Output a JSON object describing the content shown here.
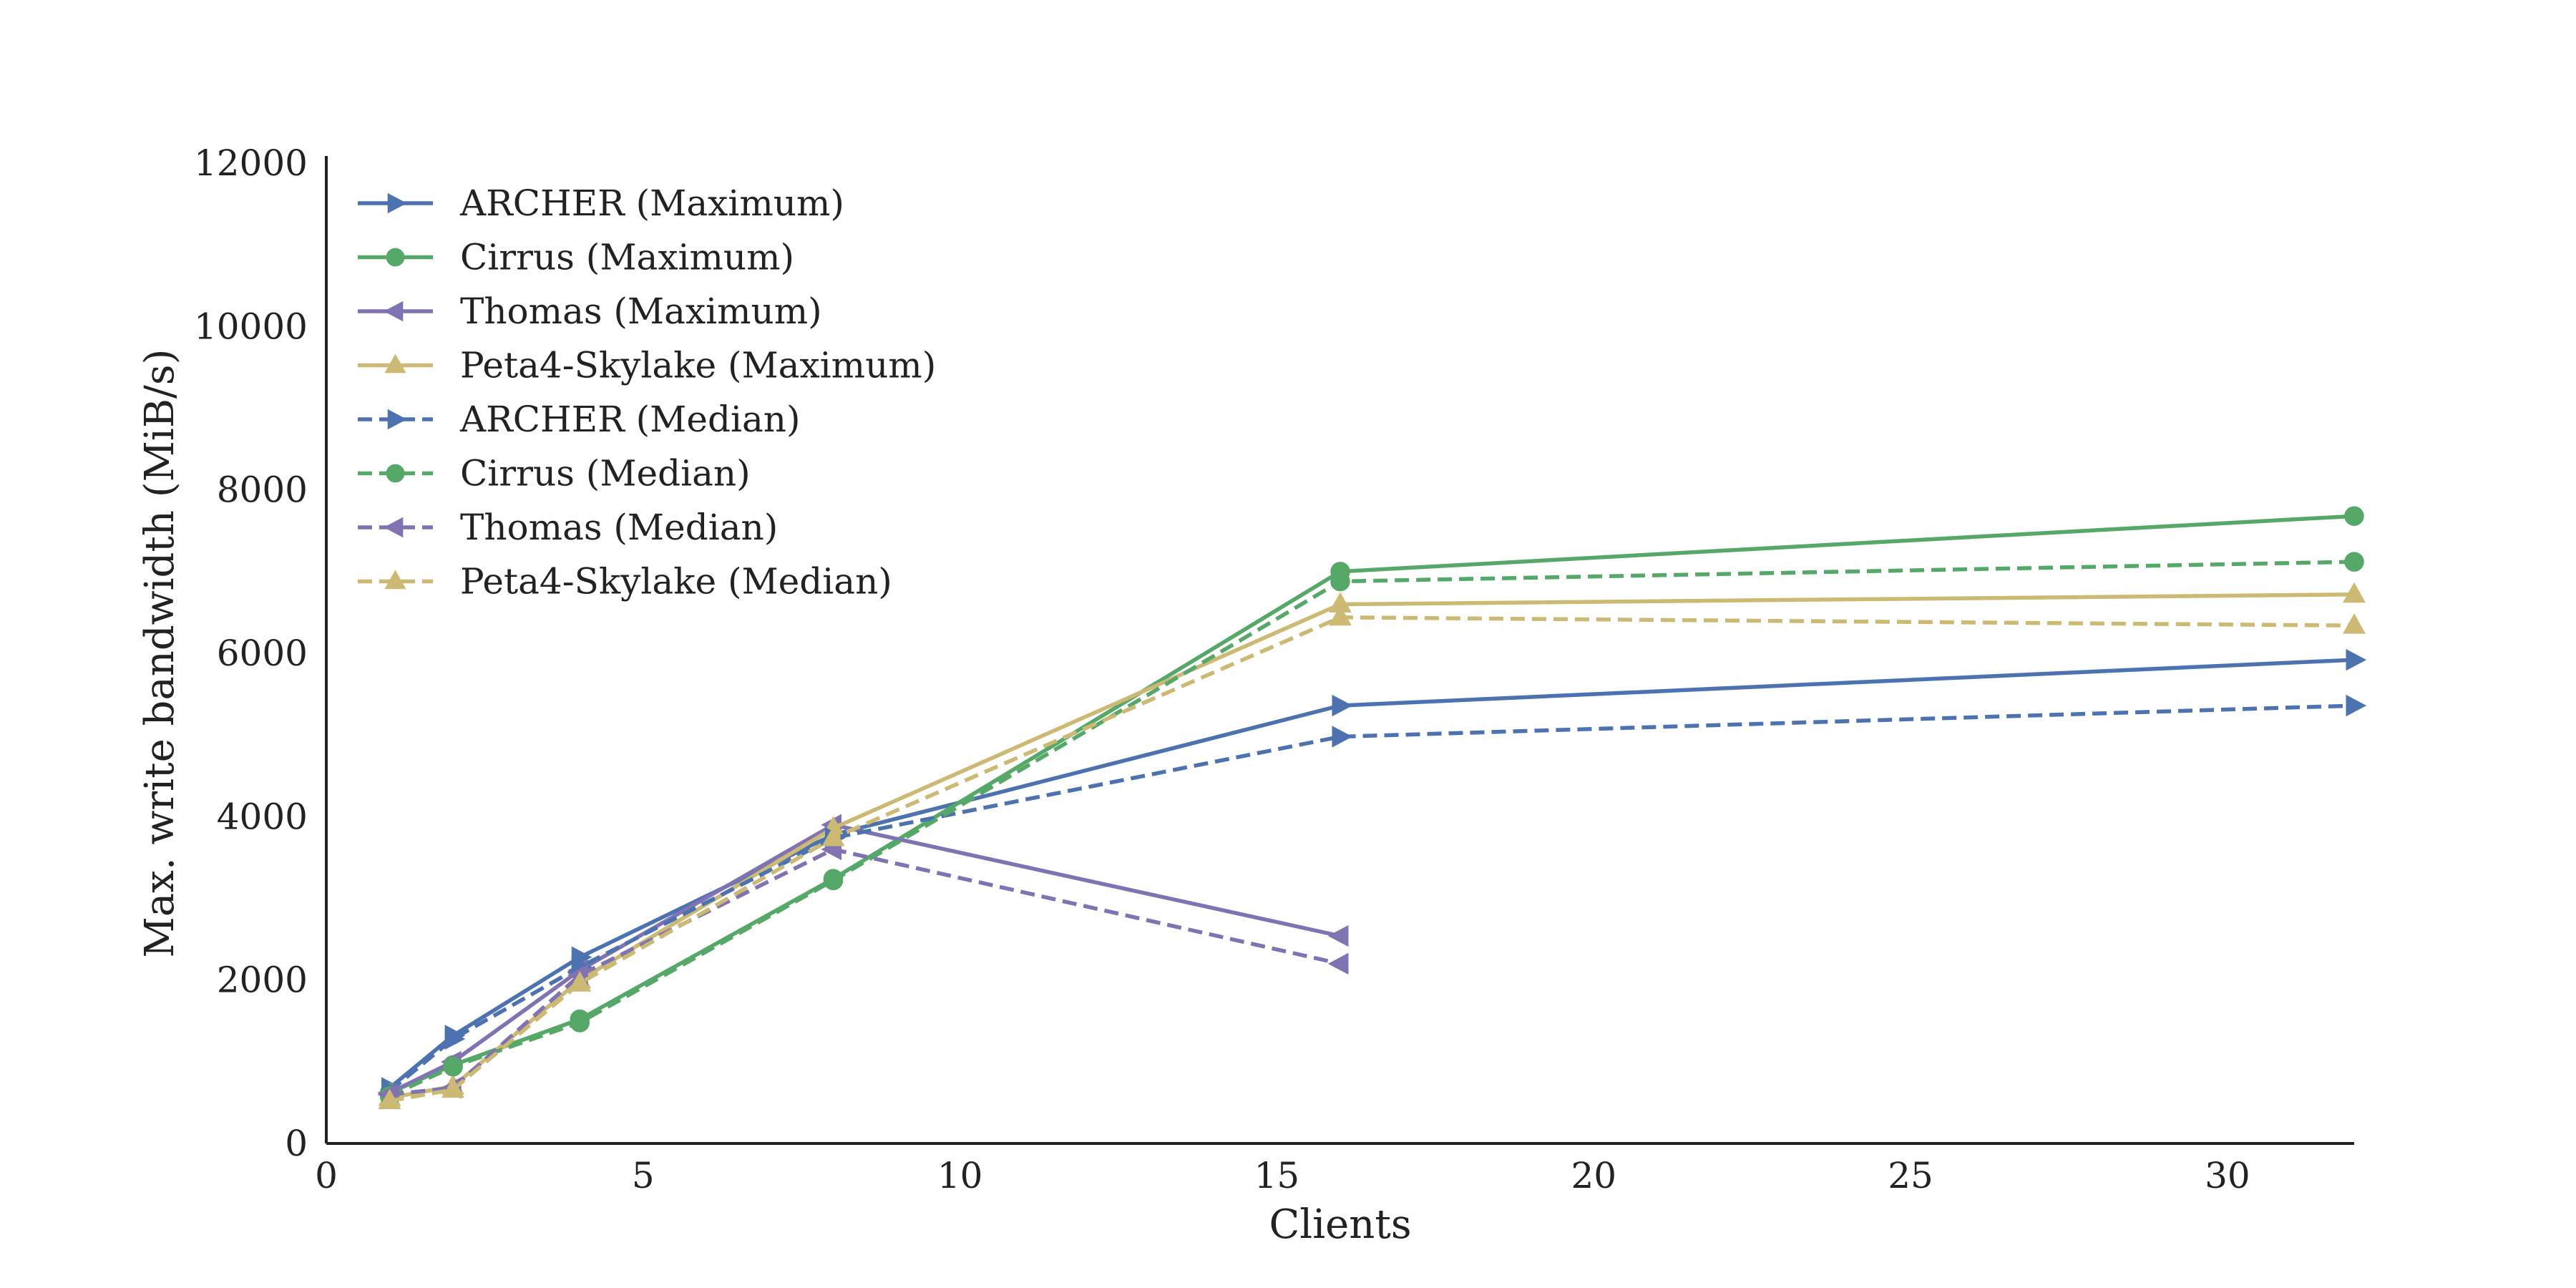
{
  "chart_data": {
    "type": "line",
    "xlabel": "Clients",
    "ylabel": "Max. write bandwidth (MiB/s)",
    "xlim": [
      0,
      32
    ],
    "ylim": [
      0,
      12000
    ],
    "xticks": [
      0,
      5,
      10,
      15,
      20,
      25,
      30
    ],
    "yticks": [
      0,
      2000,
      4000,
      6000,
      8000,
      10000,
      12000
    ],
    "grid": false,
    "legend_position": "top-left",
    "series": [
      {
        "name": "ARCHER (Maximum)",
        "color": "#4C72B0",
        "dash": "solid",
        "marker": "triangle-right",
        "x": [
          1,
          2,
          4,
          8,
          16,
          32
        ],
        "y": [
          680,
          1320,
          2280,
          3780,
          5360,
          5920
        ]
      },
      {
        "name": "Cirrus (Maximum)",
        "color": "#55A868",
        "dash": "solid",
        "marker": "circle",
        "x": [
          1,
          2,
          4,
          8,
          16,
          32
        ],
        "y": [
          620,
          960,
          1520,
          3240,
          7000,
          7680
        ]
      },
      {
        "name": "Thomas (Maximum)",
        "color": "#8172B2",
        "dash": "solid",
        "marker": "triangle-left",
        "x": [
          1,
          2,
          4,
          8,
          16
        ],
        "y": [
          620,
          1000,
          2120,
          3900,
          2540
        ]
      },
      {
        "name": "Peta4-Skylake (Maximum)",
        "color": "#CCB974",
        "dash": "solid",
        "marker": "triangle-up",
        "x": [
          1,
          2,
          4,
          8,
          16,
          32
        ],
        "y": [
          560,
          700,
          2000,
          3860,
          6600,
          6720
        ]
      },
      {
        "name": "ARCHER (Median)",
        "color": "#4C72B0",
        "dash": "dashed",
        "marker": "triangle-right",
        "x": [
          1,
          2,
          4,
          8,
          16,
          32
        ],
        "y": [
          640,
          1280,
          2160,
          3740,
          4980,
          5360
        ]
      },
      {
        "name": "Cirrus (Median)",
        "color": "#55A868",
        "dash": "dashed",
        "marker": "circle",
        "x": [
          1,
          2,
          4,
          8,
          16,
          32
        ],
        "y": [
          580,
          940,
          1480,
          3220,
          6880,
          7120
        ]
      },
      {
        "name": "Thomas (Median)",
        "color": "#8172B2",
        "dash": "dashed",
        "marker": "triangle-left",
        "x": [
          1,
          2,
          4,
          8,
          16
        ],
        "y": [
          600,
          680,
          2060,
          3600,
          2200
        ]
      },
      {
        "name": "Peta4-Skylake (Median)",
        "color": "#CCB974",
        "dash": "dashed",
        "marker": "triangle-up",
        "x": [
          1,
          2,
          4,
          8,
          16,
          32
        ],
        "y": [
          520,
          660,
          1960,
          3740,
          6440,
          6340
        ]
      }
    ]
  }
}
